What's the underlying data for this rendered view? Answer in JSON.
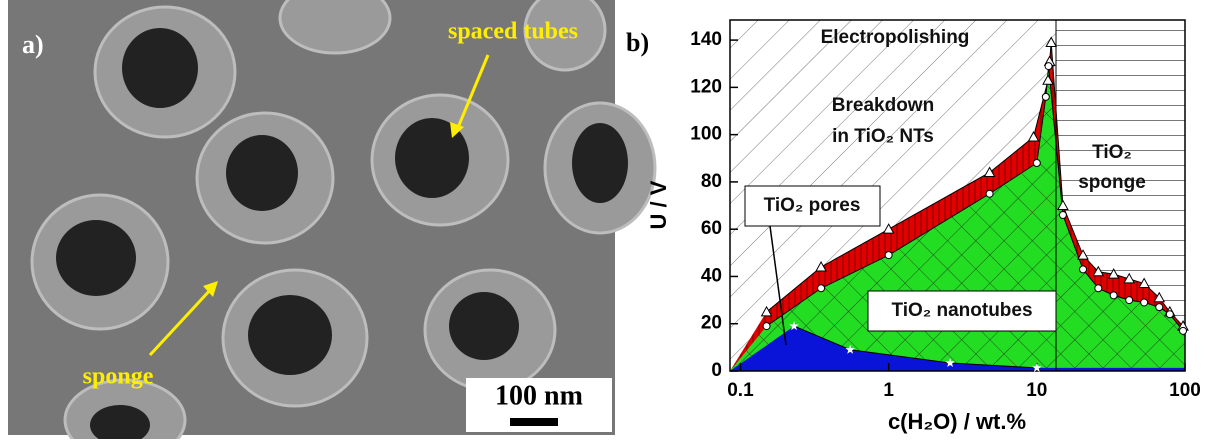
{
  "panel_a": {
    "label": "a)",
    "annotations": [
      "spaced tubes",
      "sponge"
    ],
    "scale_bar": "100 nm"
  },
  "chart_data": {
    "type": "scatter",
    "panel_label": "b)",
    "xlabel": "c(H₂O) / wt.%",
    "ylabel": "U / V",
    "log_x": true,
    "xlim": [
      0.085,
      100
    ],
    "xticks": [
      0.1,
      1,
      10,
      100
    ],
    "ylim": [
      0,
      148.5
    ],
    "yticks": [
      0,
      20,
      40,
      60,
      80,
      100,
      120,
      140
    ],
    "regions": [
      "Electropolishing",
      "Breakdown",
      "in TiO₂ NTs",
      "TiO₂",
      "sponge",
      "TiO₂ pores",
      "TiO₂ nanotubes"
    ],
    "series": [
      {
        "marker": "triangle",
        "color": "#e00000",
        "x": [
          0.15,
          0.35,
          1,
          4.8,
          9.5,
          11.9,
          12.2,
          12.5,
          15,
          20.5,
          26,
          33,
          42,
          53,
          67,
          79,
          97
        ],
        "values": [
          25,
          44,
          60,
          84,
          99,
          123,
          131,
          139,
          70,
          49,
          42,
          41,
          39,
          37,
          31,
          25,
          19
        ]
      },
      {
        "marker": "circle",
        "color": "#22dd22",
        "x": [
          0.15,
          0.35,
          1,
          4.8,
          10,
          11.5,
          12,
          15,
          20.5,
          26,
          33,
          42,
          53,
          67,
          79,
          97
        ],
        "values": [
          19,
          35,
          49,
          75,
          88,
          116,
          129,
          66,
          43,
          35,
          32,
          30,
          29,
          27,
          24,
          17
        ]
      },
      {
        "marker": "star",
        "color": "#0a14d8",
        "x": [
          0.23,
          0.55,
          2.6,
          10
        ],
        "values": [
          19,
          9,
          3.4,
          1.3
        ]
      }
    ]
  }
}
